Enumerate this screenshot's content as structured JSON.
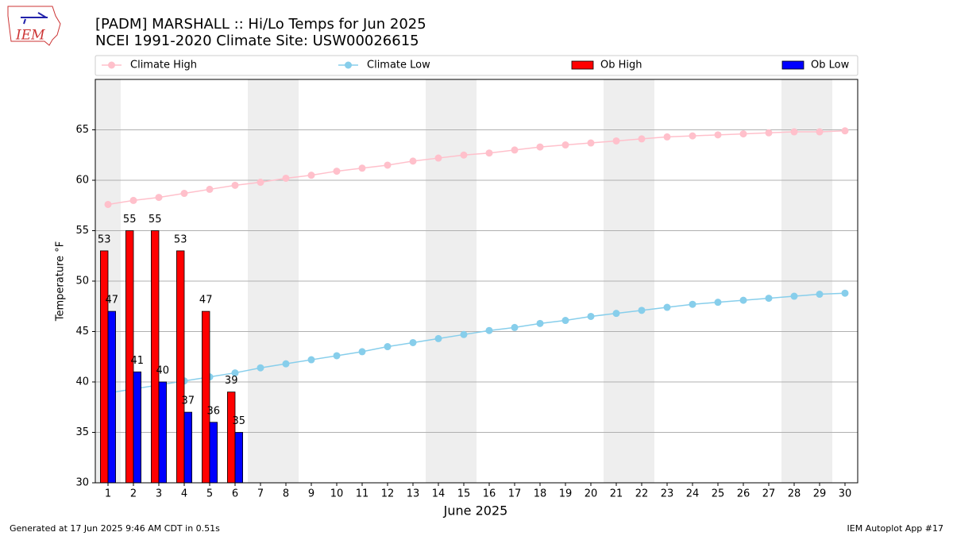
{
  "logo_text": "IEM",
  "footer_left": "Generated at 17 Jun 2025 9:46 AM CDT in 0.51s",
  "footer_right": "IEM Autoplot App #17",
  "chart_data": {
    "type": "bar",
    "title": "[PADM] MARSHALL :: Hi/Lo Temps for Jun 2025",
    "subtitle": "NCEI 1991-2020 Climate Site: USW00026615",
    "x_label": "June 2025",
    "y_label": "Temperature °F",
    "x": [
      1,
      2,
      3,
      4,
      5,
      6,
      7,
      8,
      9,
      10,
      11,
      12,
      13,
      14,
      15,
      16,
      17,
      18,
      19,
      20,
      21,
      22,
      23,
      24,
      25,
      26,
      27,
      28,
      29,
      30
    ],
    "xlim": [
      0.5,
      30.5
    ],
    "xticks": [
      1,
      2,
      3,
      4,
      5,
      6,
      7,
      8,
      9,
      10,
      11,
      12,
      13,
      14,
      15,
      16,
      17,
      18,
      19,
      20,
      21,
      22,
      23,
      24,
      25,
      26,
      27,
      28,
      29,
      30
    ],
    "ylim": [
      30,
      70
    ],
    "yticks": [
      30,
      35,
      40,
      45,
      50,
      55,
      60,
      65
    ],
    "grid": true,
    "shaded_days": [
      1,
      7,
      8,
      14,
      15,
      21,
      22,
      28,
      29
    ],
    "shade_color": "#eeeeee",
    "series": [
      {
        "name": "Climate High",
        "type": "line",
        "color": "#ffc0cb",
        "values": [
          57.6,
          58.0,
          58.3,
          58.7,
          59.1,
          59.5,
          59.8,
          60.2,
          60.5,
          60.9,
          61.2,
          61.5,
          61.9,
          62.2,
          62.5,
          62.7,
          63.0,
          63.3,
          63.5,
          63.7,
          63.9,
          64.1,
          64.3,
          64.4,
          64.5,
          64.6,
          64.7,
          64.8,
          64.8,
          64.9
        ]
      },
      {
        "name": "Climate Low",
        "type": "line",
        "color": "#87ceeb",
        "values": [
          38.9,
          39.3,
          39.7,
          40.1,
          40.5,
          40.9,
          41.4,
          41.8,
          42.2,
          42.6,
          43.0,
          43.5,
          43.9,
          44.3,
          44.7,
          45.1,
          45.4,
          45.8,
          46.1,
          46.5,
          46.8,
          47.1,
          47.4,
          47.7,
          47.9,
          48.1,
          48.3,
          48.5,
          48.7,
          48.8
        ]
      },
      {
        "name": "Ob High",
        "type": "bar",
        "color": "#ff0000",
        "values": [
          53,
          55,
          55,
          53,
          47,
          39,
          null,
          null,
          null,
          null,
          null,
          null,
          null,
          null,
          null,
          null,
          null,
          null,
          null,
          null,
          null,
          null,
          null,
          null,
          null,
          null,
          null,
          null,
          null,
          null
        ]
      },
      {
        "name": "Ob Low",
        "type": "bar",
        "color": "#0000ff",
        "values": [
          47,
          41,
          40,
          37,
          36,
          35,
          null,
          null,
          null,
          null,
          null,
          null,
          null,
          null,
          null,
          null,
          null,
          null,
          null,
          null,
          null,
          null,
          null,
          null,
          null,
          null,
          null,
          null,
          null,
          null
        ]
      }
    ]
  }
}
